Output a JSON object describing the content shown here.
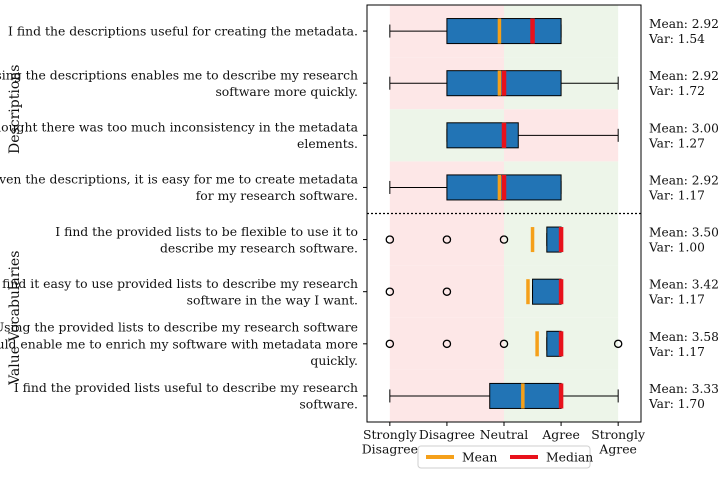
{
  "chart_data": {
    "type": "boxplot",
    "orientation": "horizontal",
    "x_ticks": [
      {
        "value": 1,
        "lines": [
          "Strongly",
          "Disagree"
        ]
      },
      {
        "value": 2,
        "lines": [
          "Disagree"
        ]
      },
      {
        "value": 3,
        "lines": [
          "Neutral"
        ]
      },
      {
        "value": 4,
        "lines": [
          "Agree"
        ]
      },
      {
        "value": 5,
        "lines": [
          "Strongly",
          "Agree"
        ]
      }
    ],
    "xlim": [
      0.6,
      5.4
    ],
    "groups": [
      {
        "label": "Descriptions",
        "first_row": 0,
        "last_row": 3
      },
      {
        "label": "Value Vocabularies",
        "first_row": 4,
        "last_row": 7
      }
    ],
    "background_bands": [
      {
        "rows": [
          0,
          1,
          3,
          4,
          5,
          6,
          7
        ],
        "left_color": "#fde7e7",
        "right_color": "#edf5e9",
        "split_at": 3
      },
      {
        "rows": [
          2
        ],
        "left_color": "#edf5e9",
        "right_color": "#fde7e7",
        "split_at": 3
      }
    ],
    "items": [
      {
        "label_lines": [
          "I find the descriptions useful for creating the metadata."
        ],
        "whisker_low": 1,
        "q1": 2,
        "q3": 4,
        "whisker_high": 4,
        "mean": 2.92,
        "median": 3.5,
        "outliers": [],
        "stats_lines": [
          "Mean: 2.92",
          "Var: 1.54"
        ]
      },
      {
        "label_lines": [
          "Using the descriptions enables me to describe my research",
          "software more quickly."
        ],
        "whisker_low": 1,
        "q1": 2,
        "q3": 4,
        "whisker_high": 5,
        "mean": 2.92,
        "median": 3,
        "outliers": [],
        "stats_lines": [
          "Mean: 2.92",
          "Var: 1.72"
        ]
      },
      {
        "label_lines": [
          "I thought there was too much inconsistency in the metadata",
          "elements."
        ],
        "whisker_low": 2,
        "q1": 2,
        "q3": 3.25,
        "whisker_high": 5,
        "mean": 3.0,
        "median": 3,
        "outliers": [],
        "stats_lines": [
          "Mean: 3.00",
          "Var: 1.27"
        ]
      },
      {
        "label_lines": [
          "Given the descriptions, it is easy for me to create metadata",
          "for my research software."
        ],
        "whisker_low": 1,
        "q1": 2,
        "q3": 4,
        "whisker_high": 4,
        "mean": 2.92,
        "median": 3,
        "outliers": [],
        "stats_lines": [
          "Mean: 2.92",
          "Var: 1.17"
        ]
      },
      {
        "label_lines": [
          "I find the provided lists to be flexible to use it to",
          "describe my research software."
        ],
        "whisker_low": 3.75,
        "q1": 3.75,
        "q3": 4,
        "whisker_high": 4,
        "mean": 3.5,
        "median": 4,
        "outliers": [
          1,
          2,
          3
        ],
        "stats_lines": [
          "Mean: 3.50",
          "Var: 1.00"
        ]
      },
      {
        "label_lines": [
          "I find it easy to use provided lists to describe my research",
          "software in the way I want."
        ],
        "whisker_low": 3.5,
        "q1": 3.5,
        "q3": 4,
        "whisker_high": 4,
        "mean": 3.42,
        "median": 4,
        "outliers": [
          1,
          2
        ],
        "stats_lines": [
          "Mean: 3.42",
          "Var: 1.17"
        ]
      },
      {
        "label_lines": [
          "Using the provided lists to describe my research software",
          "would enable me to enrich my software with metadata more",
          "quickly."
        ],
        "whisker_low": 3.75,
        "q1": 3.75,
        "q3": 4,
        "whisker_high": 4,
        "mean": 3.58,
        "median": 4,
        "outliers": [
          1,
          2,
          3,
          5
        ],
        "stats_lines": [
          "Mean: 3.58",
          "Var: 1.17"
        ]
      },
      {
        "label_lines": [
          "I find the provided lists useful to describe my research",
          "software."
        ],
        "whisker_low": 1,
        "q1": 2.75,
        "q3": 4,
        "whisker_high": 5,
        "mean": 3.33,
        "median": 4,
        "outliers": [],
        "stats_lines": [
          "Mean: 3.33",
          "Var: 1.70"
        ]
      }
    ],
    "legend": {
      "placement": "bottom-center",
      "entries": [
        {
          "name": "Mean",
          "color": "#f5a01a"
        },
        {
          "name": "Median",
          "color": "#e8111b"
        }
      ]
    },
    "colors": {
      "box_fill": "#2274b5",
      "box_edge": "#000000",
      "mean": "#f5a01a",
      "median": "#e8111b"
    }
  }
}
